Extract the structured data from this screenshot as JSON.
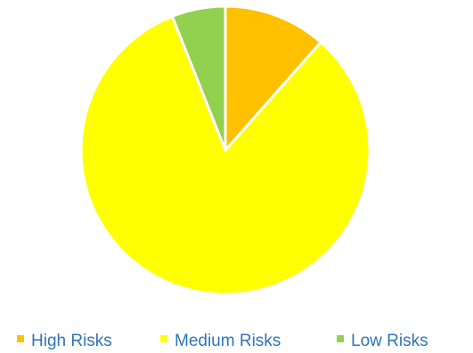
{
  "chart_data": {
    "type": "pie",
    "categories": [
      "High Risks",
      "Medium Risks",
      "Low Risks"
    ],
    "values": [
      11.5,
      82.5,
      6
    ],
    "value_unit": "percent",
    "colors": [
      "#FFC000",
      "#FFFF00",
      "#92D050"
    ],
    "legend_position": "bottom",
    "legend_text_color": "#2E75B6",
    "slice_border_color": "#FFFFFF",
    "start_angle_deg": 0,
    "direction": "clockwise"
  }
}
